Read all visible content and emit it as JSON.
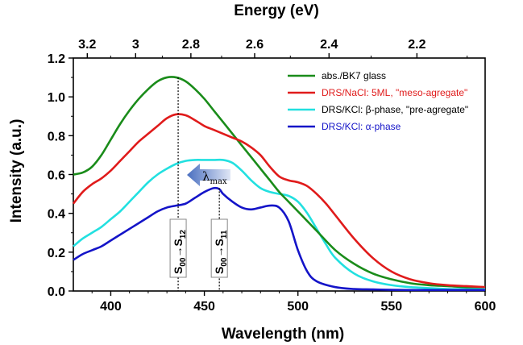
{
  "chart_data": {
    "type": "line",
    "xlabel": "Wavelength (nm)",
    "ylabel": "Intensity (a.u.)",
    "top_xlabel": "Energy (eV)",
    "xlim": [
      380,
      600
    ],
    "ylim": [
      0.0,
      1.2
    ],
    "x_ticks": [
      "400",
      "450",
      "500",
      "550",
      "600"
    ],
    "y_ticks": [
      "0.0",
      "0.2",
      "0.4",
      "0.6",
      "0.8",
      "1.0",
      "1.2"
    ],
    "top_ticks": [
      "3.2",
      "3",
      "2.8",
      "2.6",
      "2.4",
      "2.2"
    ],
    "grid": false,
    "legend_position": "top-right",
    "series": [
      {
        "name": "abs./BK7 glass",
        "color": "#1a8c1a",
        "x": [
          380,
          385,
          390,
          395,
          400,
          405,
          410,
          415,
          420,
          425,
          430,
          435,
          440,
          445,
          450,
          455,
          460,
          465,
          470,
          475,
          480,
          485,
          490,
          495,
          500,
          505,
          510,
          520,
          530,
          540,
          550,
          560,
          570,
          580,
          590,
          600
        ],
        "y": [
          0.6,
          0.61,
          0.64,
          0.7,
          0.78,
          0.86,
          0.93,
          0.99,
          1.04,
          1.08,
          1.1,
          1.1,
          1.08,
          1.04,
          0.99,
          0.93,
          0.87,
          0.81,
          0.75,
          0.69,
          0.63,
          0.57,
          0.51,
          0.46,
          0.41,
          0.36,
          0.31,
          0.21,
          0.14,
          0.09,
          0.06,
          0.04,
          0.03,
          0.025,
          0.02,
          0.02
        ]
      },
      {
        "name": "DRS/NaCl: 5ML, \"meso-agregate\"",
        "color": "#e01b1b",
        "x": [
          380,
          385,
          390,
          395,
          400,
          405,
          410,
          415,
          420,
          425,
          430,
          435,
          440,
          445,
          450,
          455,
          460,
          465,
          470,
          475,
          480,
          485,
          490,
          495,
          500,
          505,
          510,
          515,
          520,
          530,
          540,
          550,
          560,
          570,
          580,
          590,
          600
        ],
        "y": [
          0.45,
          0.51,
          0.55,
          0.58,
          0.62,
          0.67,
          0.72,
          0.77,
          0.81,
          0.85,
          0.89,
          0.91,
          0.905,
          0.88,
          0.85,
          0.83,
          0.81,
          0.79,
          0.77,
          0.74,
          0.7,
          0.64,
          0.59,
          0.57,
          0.56,
          0.54,
          0.5,
          0.45,
          0.39,
          0.27,
          0.17,
          0.1,
          0.06,
          0.04,
          0.03,
          0.025,
          0.02
        ]
      },
      {
        "name": "DRS/KCl: β-phase, \"pre-agregate\"",
        "color": "#22e0e0",
        "x": [
          380,
          385,
          390,
          395,
          400,
          405,
          410,
          415,
          420,
          425,
          430,
          435,
          440,
          445,
          450,
          455,
          460,
          465,
          470,
          475,
          480,
          485,
          490,
          495,
          500,
          505,
          510,
          515,
          520,
          530,
          540,
          550,
          560,
          570,
          580,
          590,
          600
        ],
        "y": [
          0.23,
          0.27,
          0.3,
          0.33,
          0.37,
          0.41,
          0.46,
          0.51,
          0.56,
          0.6,
          0.63,
          0.655,
          0.67,
          0.675,
          0.675,
          0.675,
          0.675,
          0.66,
          0.62,
          0.57,
          0.53,
          0.51,
          0.5,
          0.49,
          0.46,
          0.4,
          0.32,
          0.24,
          0.17,
          0.09,
          0.05,
          0.03,
          0.02,
          0.015,
          0.01,
          0.01,
          0.01
        ]
      },
      {
        "name": "DRS/KCl: α-phase",
        "color": "#1414c8",
        "x": [
          380,
          385,
          390,
          395,
          400,
          405,
          410,
          415,
          420,
          425,
          430,
          435,
          440,
          445,
          450,
          455,
          458,
          460,
          465,
          470,
          475,
          480,
          485,
          490,
          495,
          500,
          505,
          510,
          520,
          530,
          540,
          550,
          560,
          570,
          580,
          590,
          600
        ],
        "y": [
          0.16,
          0.19,
          0.21,
          0.23,
          0.26,
          0.29,
          0.32,
          0.35,
          0.38,
          0.41,
          0.43,
          0.44,
          0.45,
          0.48,
          0.51,
          0.53,
          0.525,
          0.5,
          0.46,
          0.43,
          0.42,
          0.43,
          0.44,
          0.43,
          0.36,
          0.21,
          0.1,
          0.05,
          0.02,
          0.01,
          0.008,
          0.006,
          0.005,
          0.005,
          0.005,
          0.005,
          0.005
        ]
      }
    ],
    "legend": [
      {
        "text": "abs./BK7 glass",
        "color": "#000000",
        "line_color": "#1a8c1a"
      },
      {
        "text": "DRS/NaCl: 5ML, \"meso-agregate\"",
        "color": "#e01b1b",
        "line_color": "#e01b1b"
      },
      {
        "text": "DRS/KCl: β-phase, \"pre-agregate\"",
        "color": "#000000",
        "line_color": "#22e0e0"
      },
      {
        "text": "DRS/KCl:  α-phase",
        "color": "#1414c8",
        "line_color": "#1414c8"
      }
    ],
    "markers": [
      {
        "x": 436,
        "y_top": 1.1,
        "label_main": "S",
        "label_a": "00",
        "label_b": "S",
        "label_c": "12"
      },
      {
        "x": 458,
        "y_top": 0.53,
        "label_main": "S",
        "label_a": "00",
        "label_b": "S",
        "label_c": "11"
      }
    ],
    "annotation": {
      "lambda": "λ",
      "sub": "max"
    }
  }
}
